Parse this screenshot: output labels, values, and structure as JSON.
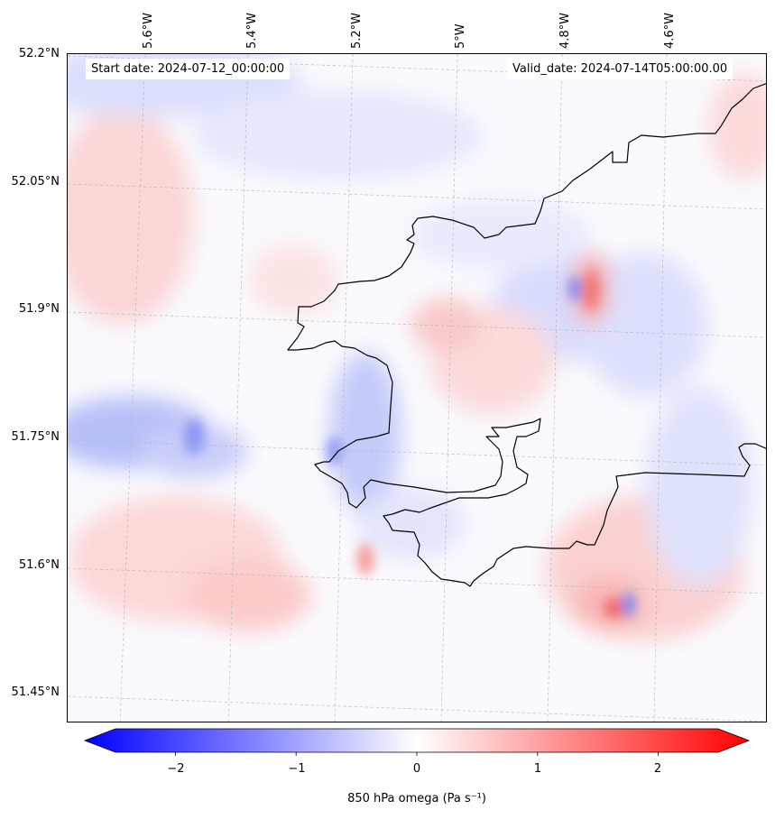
{
  "map": {
    "start_date": "Start date: 2024-07-12_00:00:00",
    "valid_date": "Valid_date: 2024-07-14T05:00:00.00",
    "lat_labels": [
      "52.2°N",
      "52.05°N",
      "51.9°N",
      "51.75°N",
      "51.6°N",
      "51.45°N"
    ],
    "lon_labels": [
      "5.6°W",
      "5.4°W",
      "5.2°W",
      "5°W",
      "4.8°W",
      "4.6°W"
    ],
    "coastline_color": "#000000",
    "gridline_color": "#b0b0b0"
  },
  "colorbar": {
    "label": "850 hPa omega (Pa s⁻¹)",
    "ticks": [
      "−2",
      "−1",
      "0",
      "1",
      "2"
    ],
    "range": [
      -2.75,
      2.75
    ],
    "extend": "both",
    "low_color": "#0000ff",
    "mid_color": "#ffffff",
    "high_color": "#ff0000"
  }
}
